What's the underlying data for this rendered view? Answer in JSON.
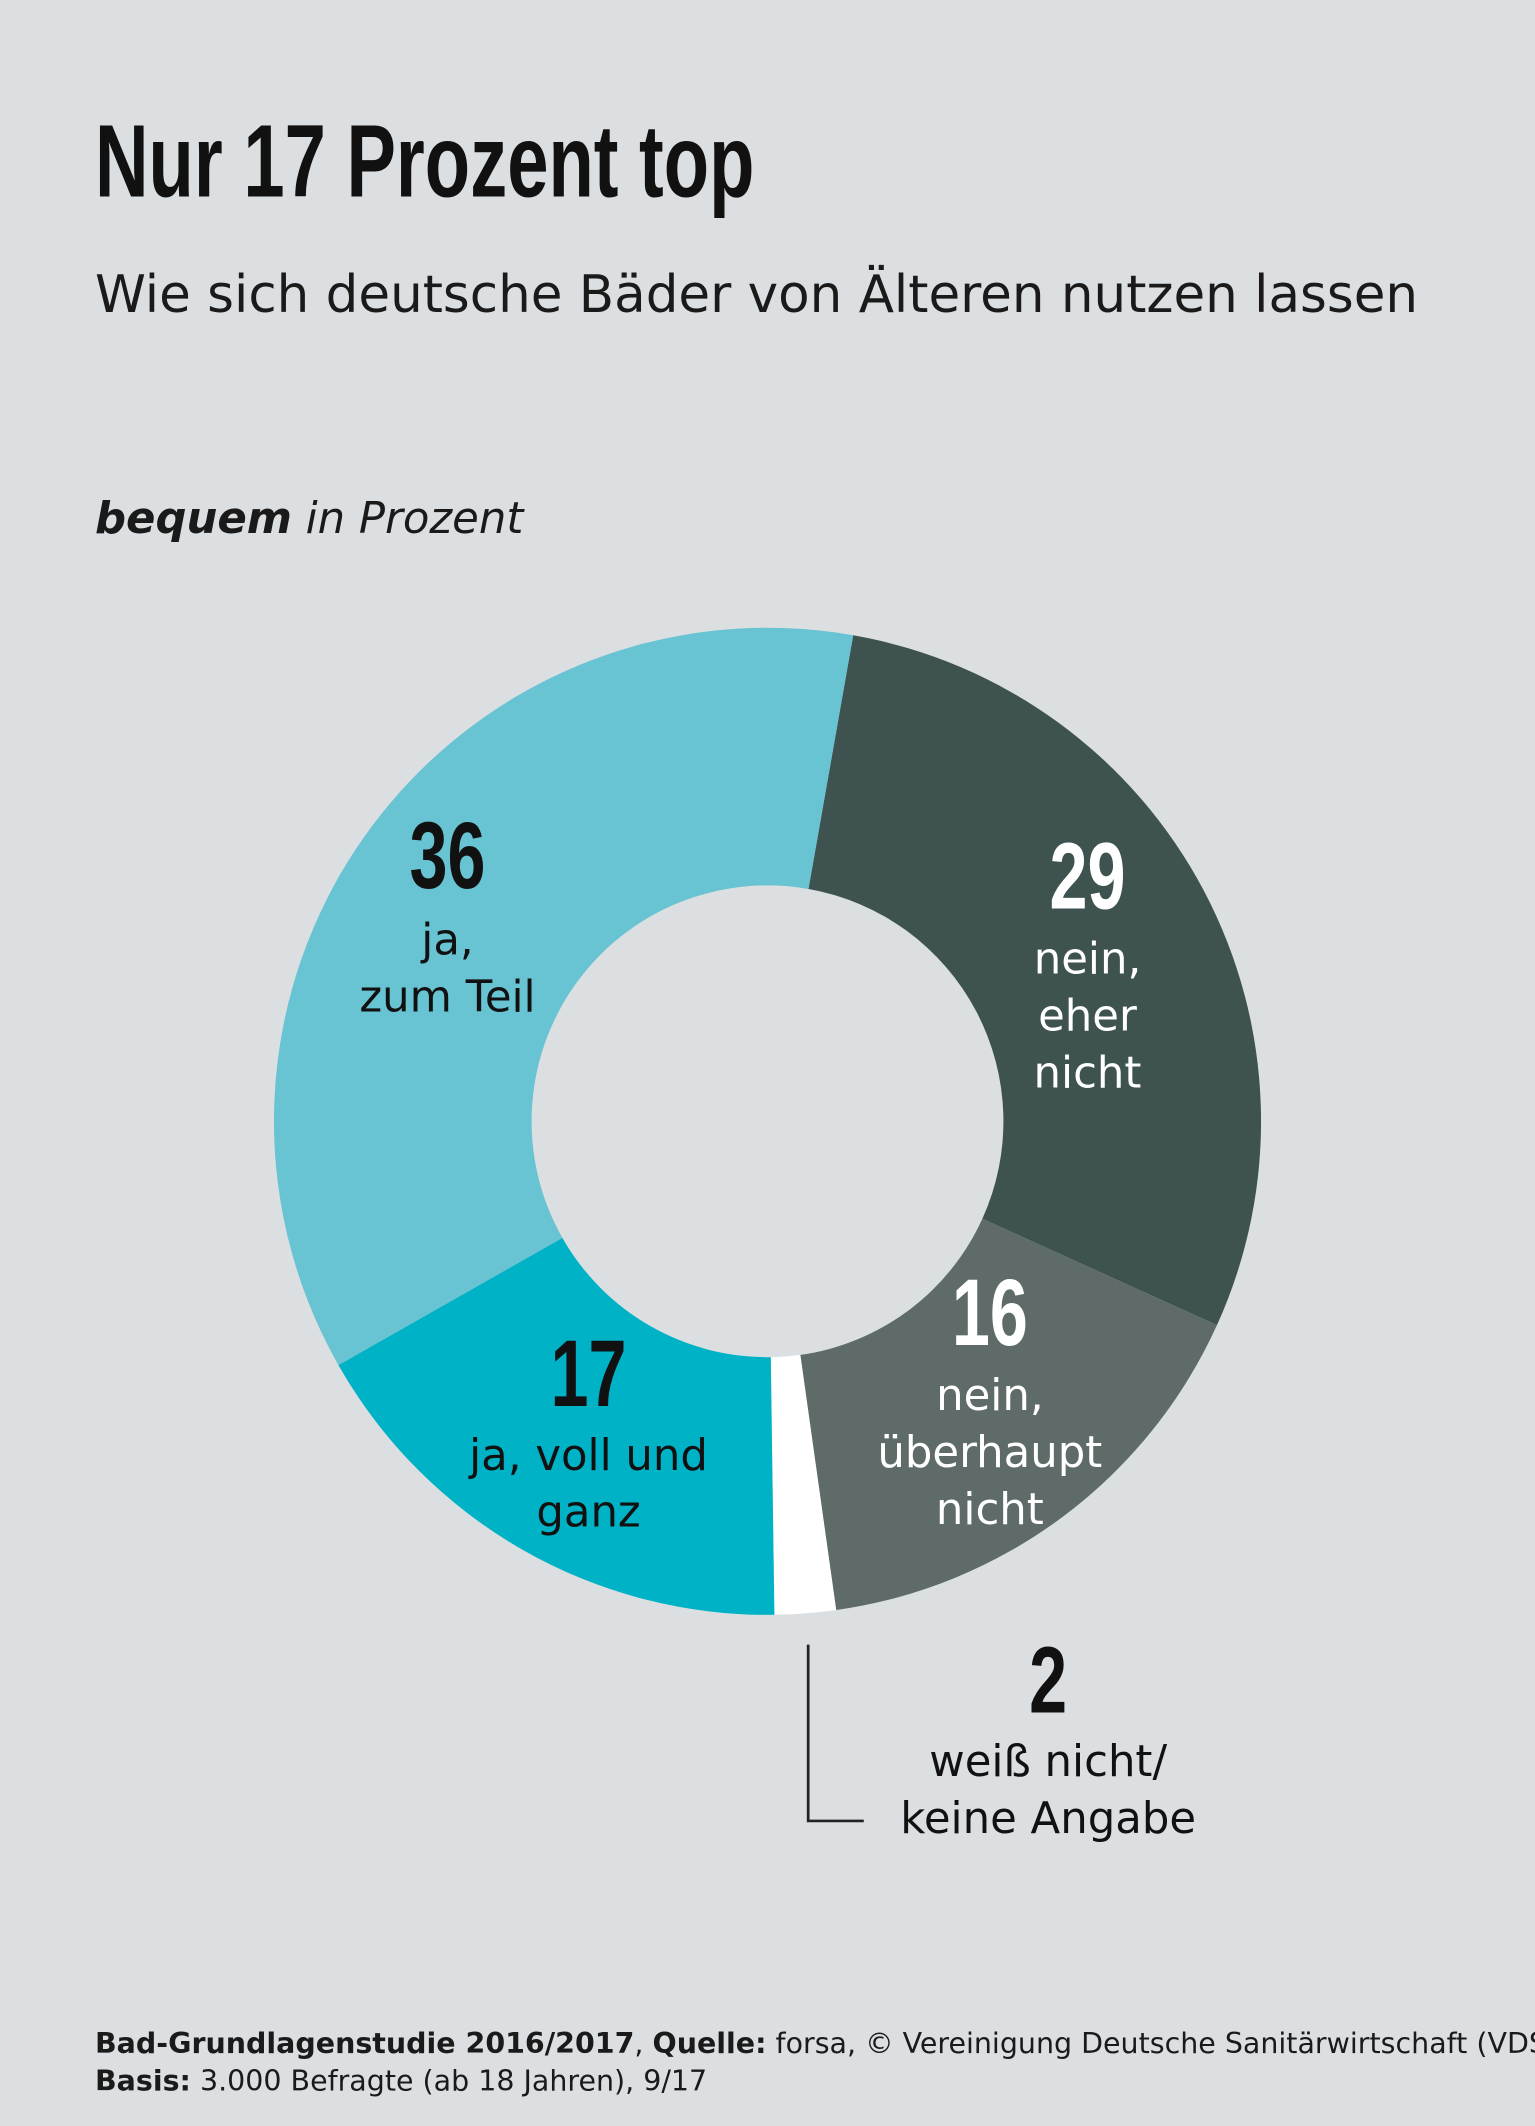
{
  "chart_data": {
    "type": "donut",
    "title": "Nur 17 Prozent top",
    "subtitle": "Wie sich deutsche Bäder von Älteren nutzen lassen",
    "measure": "bequem",
    "unit": "in Prozent",
    "categories": [
      "nein,\neher\nnicht",
      "nein,\nüberhaupt\nnicht",
      "weiß nicht/\nkeine Angabe",
      "ja, voll und\nganz",
      "ja,\nzum Teil"
    ],
    "values": [
      29,
      16,
      2,
      17,
      36
    ],
    "colors": [
      "#3e5250",
      "#5e6b69",
      "#ffffff",
      "#00b2c6",
      "#68c3d3"
    ],
    "footer": [
      [
        {
          "text": "Bad-Grundlagenstudie 2016/2017",
          "bold": true
        },
        {
          "text": ", ",
          "bold": false
        },
        {
          "text": "Quelle:",
          "bold": true
        },
        {
          "text": " forsa, © Vereinigung Deutsche Sanitärwirtschaft (VDS),",
          "bold": false
        }
      ],
      [
        {
          "text": "Basis:",
          "bold": true
        },
        {
          "text": " 3.000 Befragte (ab 18 Jahren), 9/17",
          "bold": false
        }
      ]
    ]
  }
}
